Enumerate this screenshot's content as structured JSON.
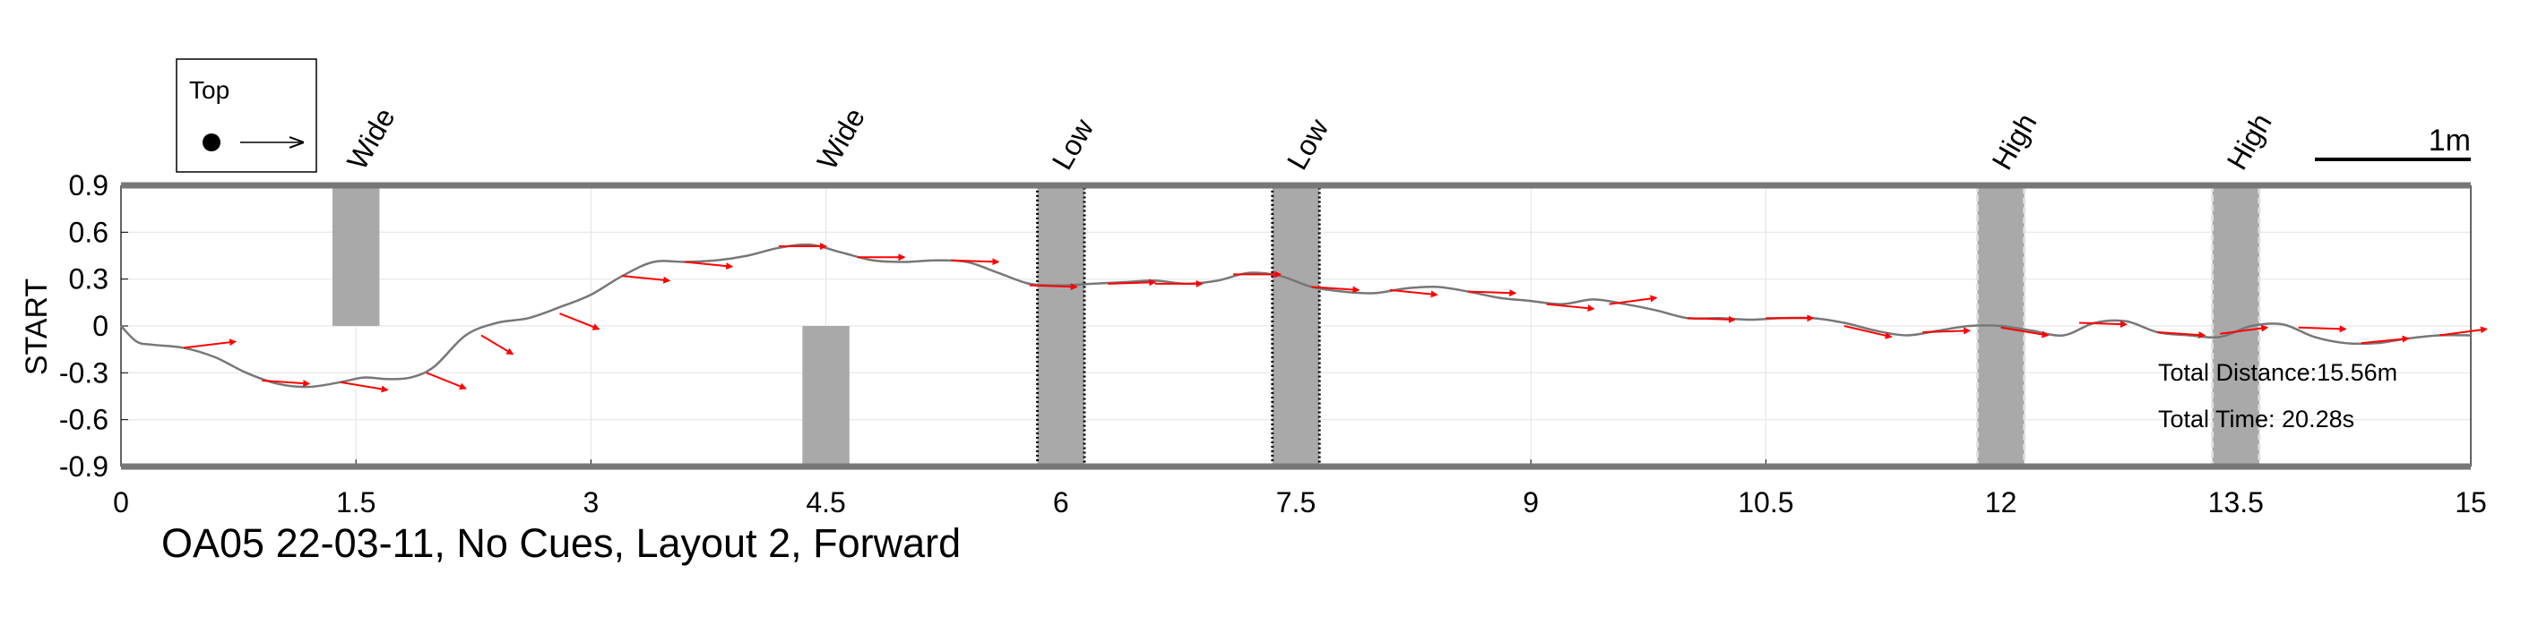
{
  "chart_data": {
    "type": "line",
    "title": "OA05 22-03-11, No Cues, Layout 2, Forward",
    "xlabel": "",
    "ylabel": "START",
    "xlim": [
      0,
      15
    ],
    "ylim": [
      -0.9,
      0.9
    ],
    "x_ticks": [
      "0",
      "1.5",
      "3",
      "4.5",
      "6",
      "7.5",
      "9",
      "10.5",
      "12",
      "13.5",
      "15"
    ],
    "y_ticks": [
      "0.9",
      "0.6",
      "0.3",
      "0",
      "-0.3",
      "-0.6",
      "-0.9"
    ],
    "grid": true,
    "legend": {
      "title": "Top",
      "position": "top-left"
    },
    "scale_bar_label": "1m",
    "annotations": {
      "total_distance": "Total Distance:15.56m",
      "total_time": "Total Time: 20.28s"
    },
    "colors": {
      "path": "#777777",
      "heading_arrow": "#ff0000",
      "obstacle": "#a9a9a9",
      "border": "#777777"
    },
    "obstacles": [
      {
        "label": "Wide",
        "x": [
          1.35,
          1.65
        ],
        "y": [
          0,
          0.9
        ],
        "style": "solid"
      },
      {
        "label": "Wide",
        "x": [
          4.35,
          4.65
        ],
        "y": [
          -0.9,
          0
        ],
        "style": "solid"
      },
      {
        "label": "Low",
        "x": [
          5.85,
          6.15
        ],
        "y": [
          -0.9,
          0.9
        ],
        "style": "dotted-dark"
      },
      {
        "label": "Low",
        "x": [
          7.35,
          7.65
        ],
        "y": [
          -0.9,
          0.9
        ],
        "style": "dotted-dark"
      },
      {
        "label": "High",
        "x": [
          11.85,
          12.15
        ],
        "y": [
          -0.9,
          0.9
        ],
        "style": "dashed-light"
      },
      {
        "label": "High",
        "x": [
          13.35,
          13.65
        ],
        "y": [
          -0.9,
          0.9
        ],
        "style": "dashed-light"
      }
    ],
    "series": [
      {
        "x": [
          0,
          0.1,
          0.2,
          0.4,
          0.6,
          0.8,
          1.0,
          1.2,
          1.4,
          1.55,
          1.7,
          1.85,
          2.0,
          2.2,
          2.4,
          2.6,
          2.8,
          3.0,
          3.2,
          3.4,
          3.6,
          3.8,
          4.0,
          4.2,
          4.4,
          4.6,
          4.8,
          5.0,
          5.2,
          5.4,
          5.6,
          5.8,
          6.0,
          6.2,
          6.4,
          6.6,
          6.8,
          7.0,
          7.2,
          7.4,
          7.6,
          7.8,
          8.0,
          8.2,
          8.4,
          8.6,
          8.8,
          9.0,
          9.2,
          9.4,
          9.6,
          9.8,
          10.0,
          10.2,
          10.4,
          10.6,
          10.8,
          11.0,
          11.2,
          11.4,
          11.6,
          11.8,
          12.0,
          12.2,
          12.4,
          12.6,
          12.8,
          13.0,
          13.2,
          13.4,
          13.6,
          13.8,
          14.0,
          14.2,
          14.4,
          14.6,
          14.8,
          15.0
        ],
        "y": [
          0,
          -0.1,
          -0.12,
          -0.14,
          -0.2,
          -0.3,
          -0.37,
          -0.39,
          -0.36,
          -0.33,
          -0.34,
          -0.33,
          -0.26,
          -0.06,
          0.02,
          0.05,
          0.12,
          0.2,
          0.32,
          0.41,
          0.41,
          0.42,
          0.45,
          0.5,
          0.52,
          0.47,
          0.42,
          0.41,
          0.42,
          0.41,
          0.34,
          0.27,
          0.26,
          0.27,
          0.28,
          0.29,
          0.27,
          0.29,
          0.34,
          0.32,
          0.25,
          0.22,
          0.21,
          0.24,
          0.25,
          0.22,
          0.18,
          0.16,
          0.14,
          0.17,
          0.14,
          0.1,
          0.05,
          0.05,
          0.04,
          0.05,
          0.05,
          0.02,
          -0.03,
          -0.06,
          -0.03,
          0.0,
          0.0,
          -0.03,
          -0.06,
          0.02,
          0.03,
          -0.04,
          -0.06,
          -0.07,
          0.0,
          0.01,
          -0.07,
          -0.11,
          -0.11,
          -0.08,
          -0.06,
          -0.06
        ]
      }
    ],
    "heading_arrows": [
      {
        "x": 0.4,
        "y": -0.14,
        "dx": 0.33,
        "dy": 0.04
      },
      {
        "x": 0.9,
        "y": -0.35,
        "dx": 0.3,
        "dy": -0.02
      },
      {
        "x": 1.4,
        "y": -0.36,
        "dx": 0.3,
        "dy": -0.05
      },
      {
        "x": 1.95,
        "y": -0.3,
        "dx": 0.25,
        "dy": -0.1
      },
      {
        "x": 2.3,
        "y": -0.06,
        "dx": 0.2,
        "dy": -0.12
      },
      {
        "x": 2.8,
        "y": 0.08,
        "dx": 0.25,
        "dy": -0.1
      },
      {
        "x": 3.2,
        "y": 0.32,
        "dx": 0.3,
        "dy": -0.03
      },
      {
        "x": 3.6,
        "y": 0.41,
        "dx": 0.3,
        "dy": -0.03
      },
      {
        "x": 4.2,
        "y": 0.51,
        "dx": 0.3,
        "dy": 0.0
      },
      {
        "x": 4.7,
        "y": 0.44,
        "dx": 0.3,
        "dy": 0.0
      },
      {
        "x": 5.3,
        "y": 0.42,
        "dx": 0.3,
        "dy": -0.01
      },
      {
        "x": 5.8,
        "y": 0.26,
        "dx": 0.3,
        "dy": -0.01
      },
      {
        "x": 6.3,
        "y": 0.27,
        "dx": 0.3,
        "dy": 0.01
      },
      {
        "x": 6.6,
        "y": 0.27,
        "dx": 0.3,
        "dy": 0.0
      },
      {
        "x": 7.1,
        "y": 0.33,
        "dx": 0.3,
        "dy": 0.0
      },
      {
        "x": 7.6,
        "y": 0.25,
        "dx": 0.3,
        "dy": -0.02
      },
      {
        "x": 8.1,
        "y": 0.23,
        "dx": 0.3,
        "dy": -0.03
      },
      {
        "x": 8.6,
        "y": 0.22,
        "dx": 0.3,
        "dy": -0.01
      },
      {
        "x": 9.1,
        "y": 0.14,
        "dx": 0.3,
        "dy": -0.03
      },
      {
        "x": 9.5,
        "y": 0.14,
        "dx": 0.3,
        "dy": 0.04
      },
      {
        "x": 10.0,
        "y": 0.05,
        "dx": 0.3,
        "dy": -0.01
      },
      {
        "x": 10.5,
        "y": 0.05,
        "dx": 0.3,
        "dy": 0.0
      },
      {
        "x": 11.0,
        "y": 0.0,
        "dx": 0.3,
        "dy": -0.07
      },
      {
        "x": 11.5,
        "y": -0.04,
        "dx": 0.3,
        "dy": 0.01
      },
      {
        "x": 12.0,
        "y": -0.01,
        "dx": 0.3,
        "dy": -0.05
      },
      {
        "x": 12.5,
        "y": 0.02,
        "dx": 0.3,
        "dy": -0.01
      },
      {
        "x": 13.0,
        "y": -0.04,
        "dx": 0.3,
        "dy": -0.02
      },
      {
        "x": 13.4,
        "y": -0.05,
        "dx": 0.3,
        "dy": 0.04
      },
      {
        "x": 13.9,
        "y": -0.01,
        "dx": 0.3,
        "dy": -0.01
      },
      {
        "x": 14.3,
        "y": -0.11,
        "dx": 0.3,
        "dy": 0.03
      },
      {
        "x": 14.8,
        "y": -0.06,
        "dx": 0.3,
        "dy": 0.04
      }
    ]
  }
}
